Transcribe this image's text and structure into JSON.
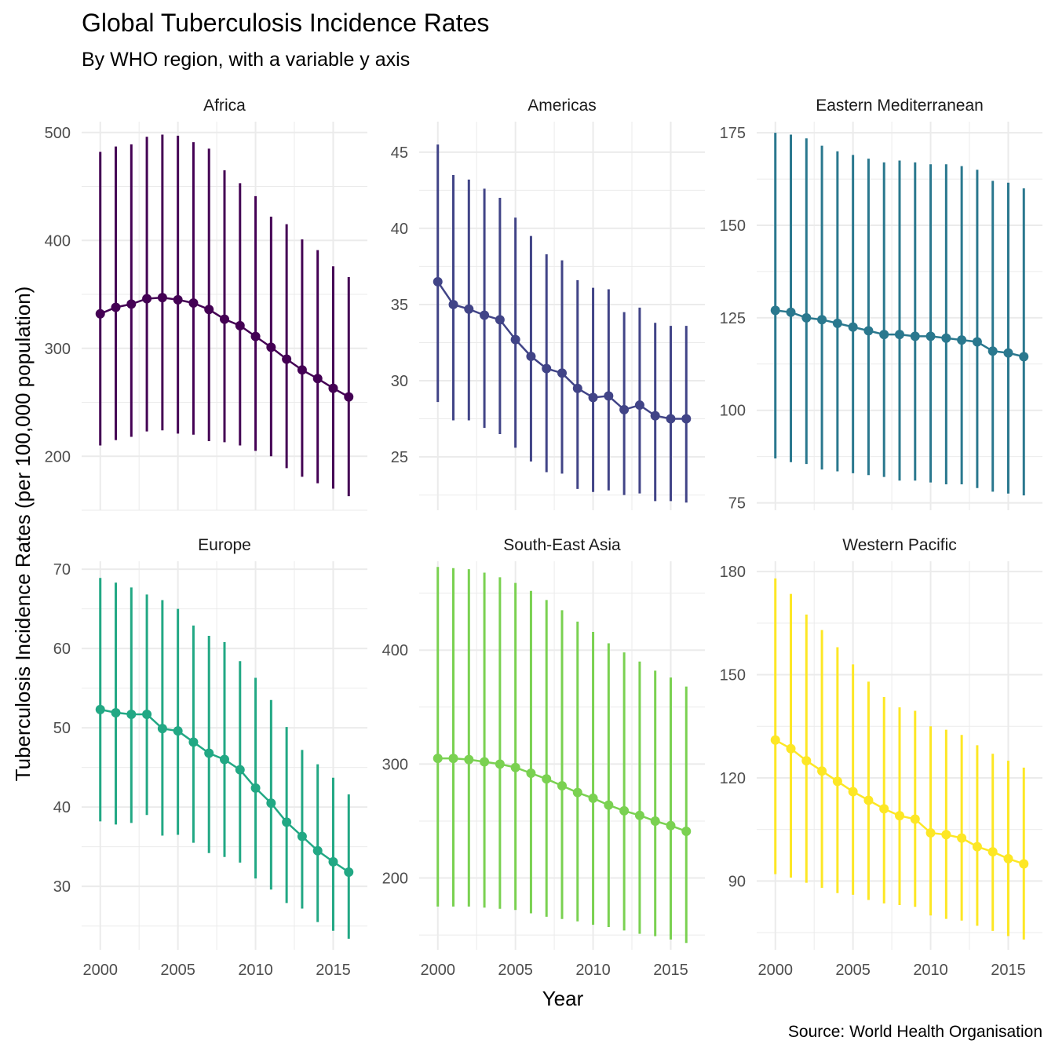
{
  "chart_data": {
    "type": "line",
    "title": "Global Tuberculosis Incidence Rates",
    "subtitle": "By WHO region, with a variable y axis",
    "xlabel": "Year",
    "ylabel": "Tuberculosis Incidence Rates (per 100,000 population)",
    "caption": "Source: World Health Organisation",
    "x": [
      2000,
      2001,
      2002,
      2003,
      2004,
      2005,
      2006,
      2007,
      2008,
      2009,
      2010,
      2011,
      2012,
      2013,
      2014,
      2015,
      2016
    ],
    "x_ticks": [
      "2000",
      "2005",
      "2010",
      "2015"
    ],
    "xlim": [
      1998.8,
      2017.2
    ],
    "grid": true,
    "legend": "none",
    "panels": [
      {
        "name": "Africa",
        "color": "#440154",
        "ylim": [
          150,
          510
        ],
        "y_ticks": [
          200,
          300,
          400,
          500
        ],
        "values": [
          332,
          338,
          341,
          346,
          347,
          345,
          342,
          336,
          327,
          321,
          311,
          301,
          290,
          280,
          272,
          263,
          255
        ],
        "low": [
          210,
          215,
          218,
          223,
          224,
          221,
          220,
          214,
          213,
          210,
          205,
          200,
          189,
          181,
          175,
          170,
          163
        ],
        "high": [
          482,
          487,
          489,
          496,
          498,
          497,
          491,
          485,
          465,
          453,
          441,
          422,
          415,
          401,
          391,
          376,
          366
        ]
      },
      {
        "name": "Americas",
        "color": "#414487",
        "ylim": [
          21.5,
          47
        ],
        "y_ticks": [
          25,
          30,
          35,
          40,
          45
        ],
        "values": [
          36.5,
          35.0,
          34.7,
          34.3,
          34.0,
          32.7,
          31.6,
          30.8,
          30.5,
          29.5,
          28.9,
          29.0,
          28.1,
          28.4,
          27.7,
          27.5,
          27.5
        ],
        "low": [
          28.6,
          27.4,
          27.4,
          26.9,
          26.5,
          25.6,
          24.7,
          24.0,
          23.9,
          22.9,
          22.7,
          22.8,
          22.5,
          22.6,
          22.1,
          22.1,
          22.0
        ],
        "high": [
          45.5,
          43.5,
          43.2,
          42.6,
          42.0,
          40.7,
          39.5,
          38.3,
          37.9,
          36.6,
          36.1,
          36.0,
          34.5,
          34.8,
          33.8,
          33.6,
          33.6
        ]
      },
      {
        "name": "Eastern Mediterranean",
        "color": "#2A788E",
        "ylim": [
          73,
          178
        ],
        "y_ticks": [
          75,
          100,
          125,
          150,
          175
        ],
        "values": [
          127,
          126.5,
          125,
          124.5,
          123.5,
          122.5,
          121.5,
          120.5,
          120.5,
          120,
          120,
          119.5,
          119,
          118.5,
          116,
          115.5,
          114.5
        ],
        "low": [
          87,
          86,
          85.5,
          84,
          83.5,
          83,
          82.5,
          82,
          81,
          81,
          80.5,
          80,
          80,
          79,
          78,
          77.5,
          77
        ],
        "high": [
          175,
          174.5,
          173.5,
          171.5,
          170,
          169,
          168,
          167,
          167.5,
          167,
          166.5,
          166.5,
          166,
          165,
          162,
          161.5,
          160
        ]
      },
      {
        "name": "Europe",
        "color": "#22A884",
        "ylim": [
          22,
          71
        ],
        "y_ticks": [
          30,
          40,
          50,
          60,
          70
        ],
        "values": [
          52.3,
          51.9,
          51.7,
          51.7,
          49.9,
          49.6,
          48.2,
          46.8,
          46.0,
          44.7,
          42.4,
          40.5,
          38.1,
          36.3,
          34.5,
          33.1,
          31.8
        ],
        "low": [
          38.2,
          37.8,
          38.0,
          39.0,
          36.4,
          36.5,
          35.5,
          34.2,
          33.7,
          33.0,
          31.0,
          29.6,
          27.9,
          27.2,
          25.5,
          24.4,
          23.4
        ],
        "high": [
          68.9,
          68.3,
          67.7,
          66.8,
          66.1,
          65.0,
          62.9,
          61.6,
          60.8,
          58.4,
          56.3,
          53.5,
          50.1,
          47.2,
          45.4,
          43.7,
          41.6
        ]
      },
      {
        "name": "South-East Asia",
        "color": "#7AD151",
        "ylim": [
          137,
          478
        ],
        "y_ticks": [
          200,
          300,
          400
        ],
        "values": [
          305,
          305,
          304,
          302,
          300,
          297,
          292,
          287,
          281,
          275,
          270,
          264,
          259,
          255,
          250,
          246,
          241
        ],
        "low": [
          175,
          175,
          175,
          174,
          173,
          172,
          169,
          166,
          164,
          162,
          159,
          157,
          154,
          151,
          149,
          146,
          143
        ],
        "high": [
          473,
          472,
          471,
          468,
          464,
          459,
          452,
          444,
          435,
          425,
          416,
          406,
          398,
          390,
          382,
          376,
          368
        ]
      },
      {
        "name": "Western Pacific",
        "color": "#FDE725",
        "ylim": [
          70,
          183
        ],
        "y_ticks": [
          90,
          120,
          150,
          180
        ],
        "values": [
          131,
          128.5,
          125,
          122,
          119,
          116,
          113.5,
          111,
          109,
          108,
          104,
          103.5,
          102.5,
          100,
          98.5,
          96.5,
          95
        ],
        "low": [
          92,
          91,
          89.5,
          88,
          86.5,
          86,
          84.5,
          83.5,
          83,
          82.5,
          80,
          79,
          78.5,
          77,
          75.5,
          74,
          73
        ],
        "high": [
          178,
          173.5,
          167.5,
          163,
          158,
          153,
          148,
          143.5,
          140.5,
          139.5,
          135,
          134,
          132.5,
          129.5,
          127,
          125,
          123
        ]
      }
    ]
  }
}
